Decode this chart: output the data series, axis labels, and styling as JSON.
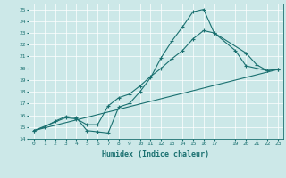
{
  "title": "",
  "xlabel": "Humidex (Indice chaleur)",
  "ylabel": "",
  "bg_color": "#cce8e8",
  "grid_color": "#ffffff",
  "line_color": "#1a7070",
  "marker": "+",
  "xlim": [
    -0.5,
    23.5
  ],
  "ylim": [
    14,
    25.5
  ],
  "xticks": [
    0,
    1,
    2,
    3,
    4,
    5,
    6,
    7,
    8,
    9,
    10,
    11,
    12,
    13,
    14,
    15,
    16,
    17,
    19,
    20,
    21,
    22,
    23
  ],
  "yticks": [
    14,
    15,
    16,
    17,
    18,
    19,
    20,
    21,
    22,
    23,
    24,
    25
  ],
  "line1_x": [
    0,
    1,
    2,
    3,
    4,
    5,
    6,
    7,
    8,
    9,
    10,
    11,
    12,
    13,
    14,
    15,
    16,
    17,
    19,
    20,
    21,
    22,
    23
  ],
  "line1_y": [
    14.7,
    15.0,
    15.5,
    15.9,
    15.8,
    14.7,
    14.6,
    14.5,
    16.7,
    17.0,
    18.0,
    19.2,
    20.9,
    22.3,
    23.5,
    24.8,
    25.0,
    23.0,
    21.5,
    20.2,
    20.0,
    19.8,
    19.9
  ],
  "line2_x": [
    0,
    3,
    4,
    5,
    6,
    7,
    8,
    9,
    10,
    11,
    12,
    13,
    14,
    15,
    16,
    17,
    20,
    21,
    22,
    23
  ],
  "line2_y": [
    14.7,
    15.8,
    15.7,
    15.2,
    15.2,
    16.8,
    17.5,
    17.8,
    18.5,
    19.3,
    20.0,
    20.8,
    21.5,
    22.5,
    23.2,
    23.0,
    21.3,
    20.3,
    19.8,
    19.9
  ],
  "line3_x": [
    0,
    23
  ],
  "line3_y": [
    14.7,
    19.9
  ],
  "figsize": [
    3.2,
    2.0
  ],
  "dpi": 100
}
